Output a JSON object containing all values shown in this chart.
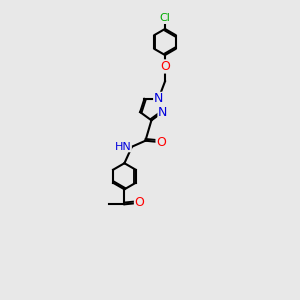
{
  "bg_color": "#e8e8e8",
  "bond_color": "#000000",
  "bond_width": 1.5,
  "atom_colors": {
    "C": "#000000",
    "N": "#0000dd",
    "O": "#ff0000",
    "Cl": "#00aa00",
    "H": "#555555"
  },
  "font_size": 8
}
